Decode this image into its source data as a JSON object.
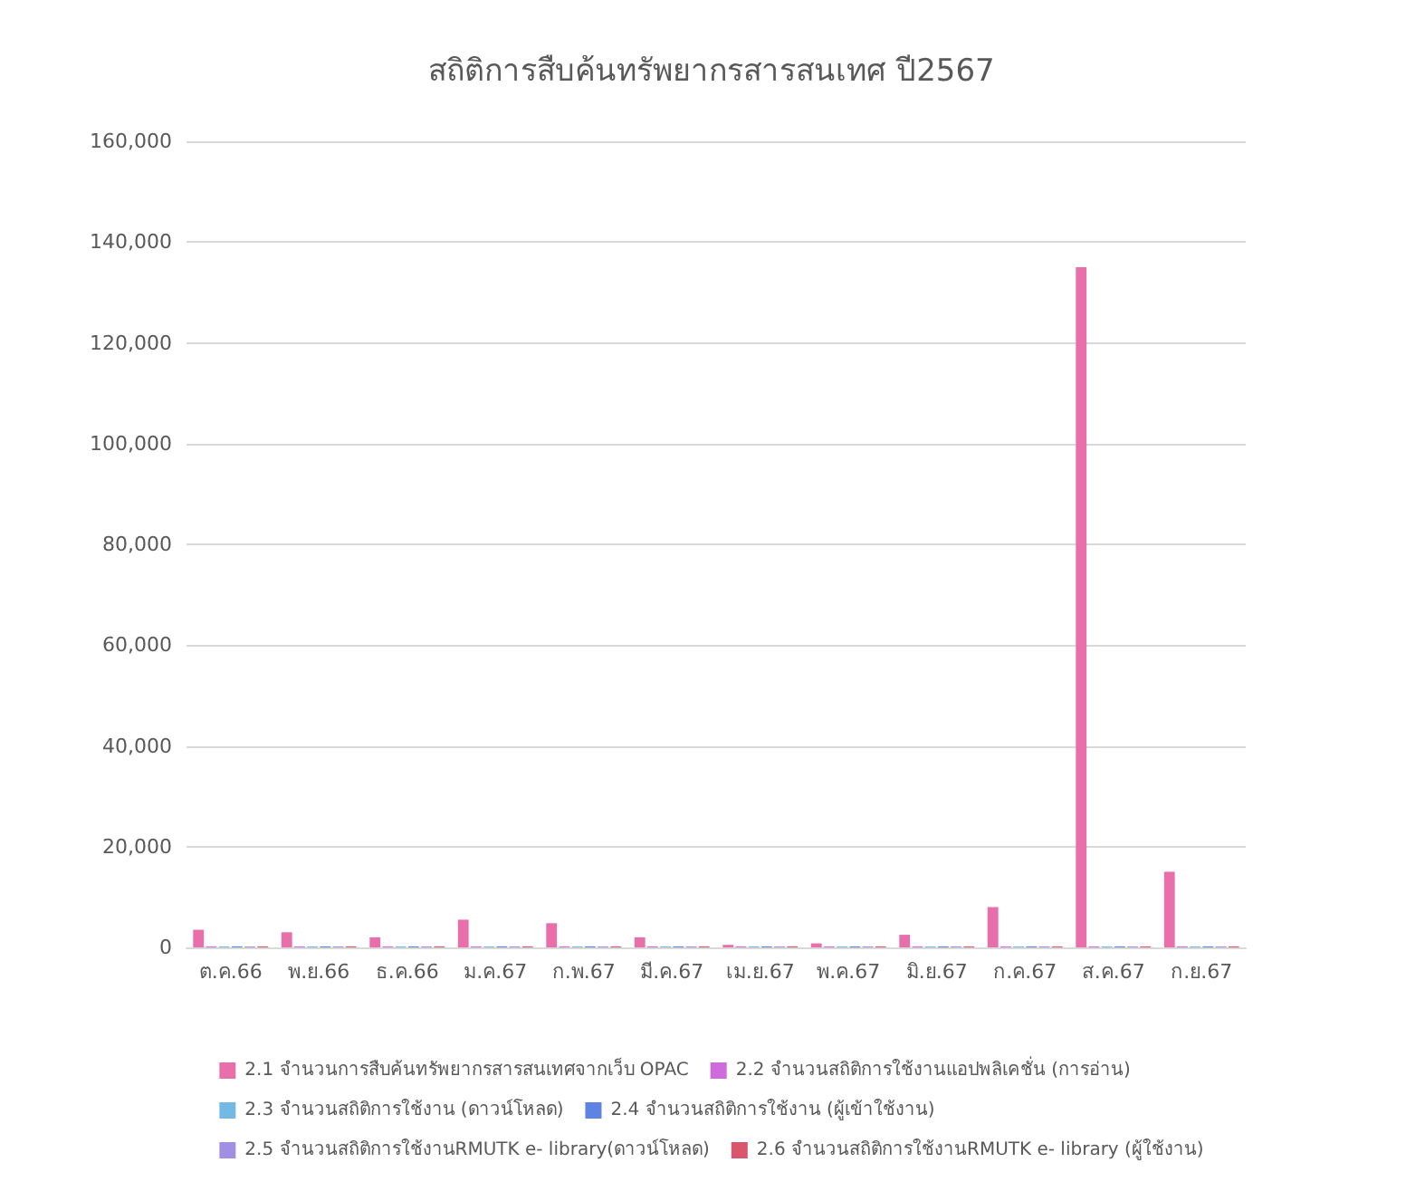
{
  "chart_data": {
    "type": "bar",
    "title": "สถิติการสืบค้นทรัพยากรสารสนเทศ ปี2567",
    "categories": [
      "ต.ค.66",
      "พ.ย.66",
      "ธ.ค.66",
      "ม.ค.67",
      "ก.พ.67",
      "มี.ค.67",
      "เม.ย.67",
      "พ.ค.67",
      "มิ.ย.67",
      "ก.ค.67",
      "ส.ค.67",
      "ก.ย.67"
    ],
    "series": [
      {
        "name": "2.1 จำนวนการสืบค้นทรัพยากรสารสนเทศจากเว็บ OPAC",
        "color": "#e96fab",
        "values": [
          3500,
          3000,
          2000,
          5500,
          4800,
          2000,
          500,
          800,
          2500,
          8000,
          135000,
          15000
        ]
      },
      {
        "name": "2.2 จำนวนสถิติการใช้งานแอปพลิเคชั่น (การอ่าน)",
        "color": "#cf6bdc",
        "values": [
          200,
          200,
          200,
          200,
          200,
          200,
          200,
          200,
          200,
          200,
          200,
          200
        ]
      },
      {
        "name": "2.3 จำนวนสถิติการใช้งาน (ดาวน์โหลด)",
        "color": "#72b9e3",
        "values": [
          200,
          200,
          200,
          200,
          200,
          200,
          200,
          200,
          200,
          200,
          200,
          200
        ]
      },
      {
        "name": "2.4 จำนวนสถิติการใช้งาน (ผู้เข้าใช้งาน)",
        "color": "#5f83e2",
        "values": [
          200,
          200,
          200,
          200,
          200,
          200,
          200,
          200,
          200,
          200,
          200,
          200
        ]
      },
      {
        "name": "2.5 จำนวนสถิติการใช้งานRMUTK e- library(ดาวน์โหลด)",
        "color": "#a08fe3",
        "values": [
          200,
          200,
          200,
          200,
          200,
          200,
          200,
          200,
          200,
          200,
          200,
          200
        ]
      },
      {
        "name": "2.6 จำนวนสถิติการใช้งานRMUTK e- library (ผู้ใช้งาน)",
        "color": "#d9566f",
        "values": [
          200,
          200,
          200,
          200,
          200,
          200,
          200,
          200,
          200,
          200,
          200,
          200
        ]
      }
    ],
    "ylim": [
      0,
      160000
    ],
    "yticks": [
      0,
      {
        "value": 20000,
        "label": "20,000"
      },
      {
        "value": 40000,
        "label": "40,000"
      },
      {
        "value": 60000,
        "label": "60,000"
      },
      {
        "value": 80000,
        "label": "80,000"
      },
      {
        "value": 100000,
        "label": "100,000"
      },
      {
        "value": 120000,
        "label": "120,000"
      },
      {
        "value": 140000,
        "label": "140,000"
      },
      {
        "value": 160000,
        "label": "160,000"
      }
    ],
    "grid": "y",
    "legend": "bottom"
  }
}
